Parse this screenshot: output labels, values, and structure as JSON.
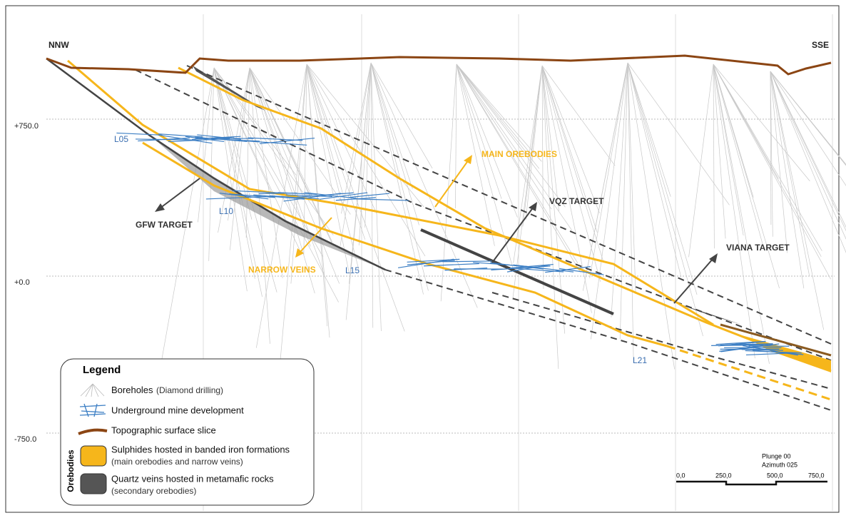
{
  "header": {
    "left": "NNW",
    "right": "SSE"
  },
  "elevations": [
    "+750.0",
    "+0.0",
    "-750.0"
  ],
  "levels": [
    "L05",
    "L10",
    "L15",
    "L21"
  ],
  "targets": {
    "main_orebodies": "MAIN OREBODIES",
    "vqz": "VQZ TARGET",
    "gfw": "GFW TARGET",
    "narrow_veins": "NARROW VEINS",
    "viana": "VIANA TARGET"
  },
  "legend": {
    "title": "Legend",
    "group": "Orebodies",
    "items": [
      {
        "label": "Boreholes",
        "note": "(Diamond drilling)"
      },
      {
        "label": "Underground mine development"
      },
      {
        "label": "Topographic surface slice"
      },
      {
        "label": "Sulphides hosted in banded iron formations",
        "note": "(main orebodies and narrow veins)"
      },
      {
        "label": "Quartz veins hosted in metamafic rocks",
        "note": "(secondary orebodies)"
      }
    ]
  },
  "scale": {
    "plunge": "Plunge 00",
    "azimuth": "Azimuth 025",
    "ticks": [
      "0,0",
      "250,0",
      "500,0",
      "750,0"
    ]
  }
}
